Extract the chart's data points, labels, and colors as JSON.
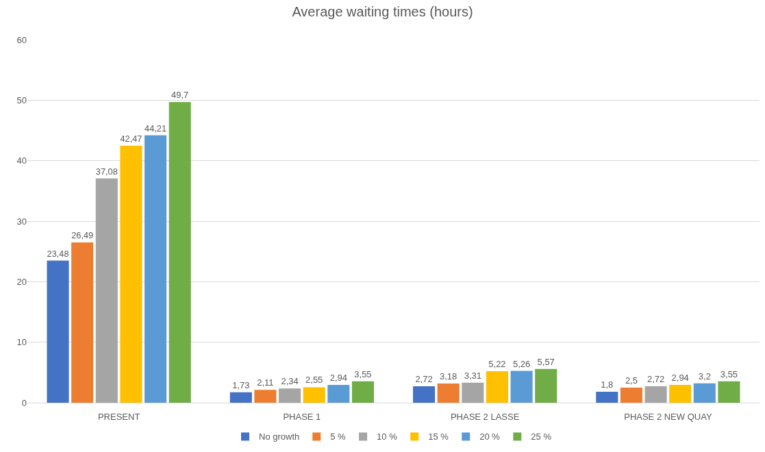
{
  "chart_data": {
    "type": "bar",
    "title": "Average waiting times (hours)",
    "categories": [
      "PRESENT",
      "PHASE 1",
      "PHASE 2 LASSE",
      "PHASE 2 NEW QUAY"
    ],
    "series": [
      {
        "name": "No growth",
        "color": "#4472c4",
        "values": [
          23.48,
          1.73,
          2.72,
          1.8
        ],
        "value_labels": [
          "23,48",
          "1,73",
          "2,72",
          "1,8"
        ]
      },
      {
        "name": "5 %",
        "color": "#ed7d31",
        "values": [
          26.49,
          2.11,
          3.18,
          2.5
        ],
        "value_labels": [
          "26,49",
          "2,11",
          "3,18",
          "2,5"
        ]
      },
      {
        "name": "10 %",
        "color": "#a5a5a5",
        "values": [
          37.08,
          2.34,
          3.31,
          2.72
        ],
        "value_labels": [
          "37,08",
          "2,34",
          "3,31",
          "2,72"
        ]
      },
      {
        "name": "15 %",
        "color": "#ffc000",
        "values": [
          42.47,
          2.55,
          5.22,
          2.94
        ],
        "value_labels": [
          "42,47",
          "2,55",
          "5,22",
          "2,94"
        ]
      },
      {
        "name": "20 %",
        "color": "#5b9bd5",
        "values": [
          44.21,
          2.94,
          5.26,
          3.2
        ],
        "value_labels": [
          "44,21",
          "2,94",
          "5,26",
          "3,2"
        ]
      },
      {
        "name": "25 %",
        "color": "#70ad47",
        "values": [
          49.7,
          3.55,
          5.57,
          3.55
        ],
        "value_labels": [
          "49,7",
          "3,55",
          "5,57",
          "3,55"
        ]
      }
    ],
    "ylim": [
      0,
      60
    ],
    "yticks": [
      0,
      10,
      20,
      30,
      40,
      50,
      60
    ],
    "grid": "y",
    "legend": "bottom"
  }
}
